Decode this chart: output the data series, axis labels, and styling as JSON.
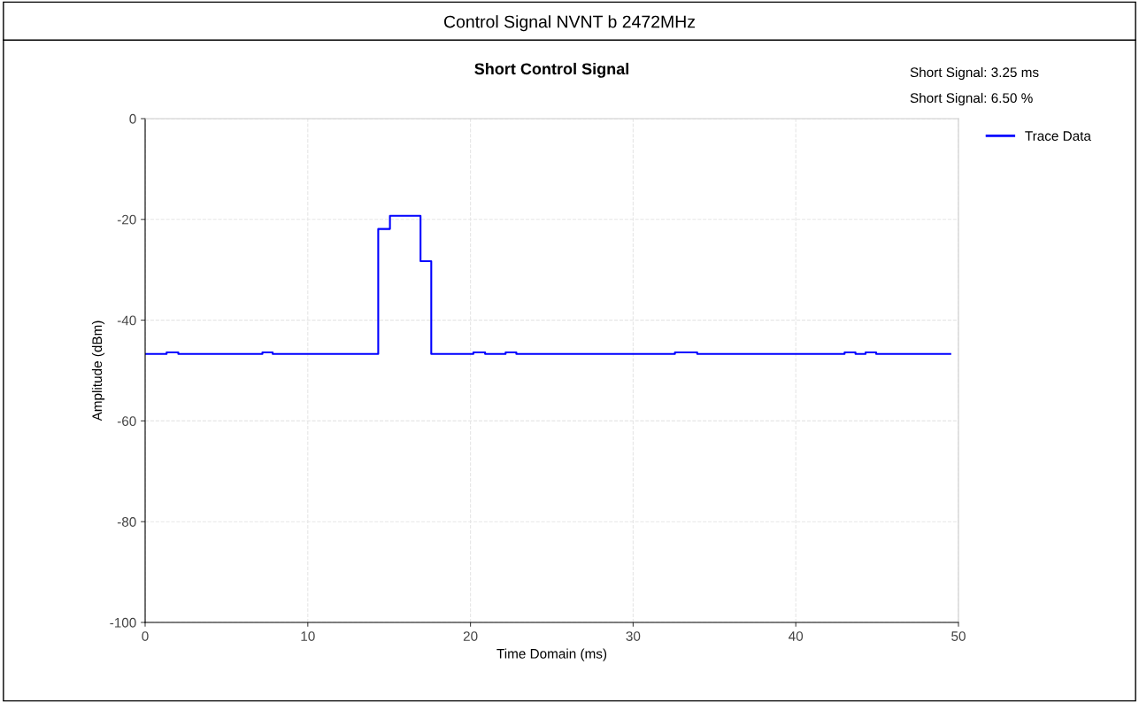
{
  "chart_data": {
    "type": "step",
    "title": "Control Signal NVNT b 2472MHz",
    "subtitle": "Short Control Signal",
    "xlabel": "Time Domain (ms)",
    "ylabel": "Amplitude (dBm)",
    "annotations": [
      "Short Signal: 3.25 ms",
      "Short Signal: 6.50 %"
    ],
    "series": [
      {
        "name": "Trace Data",
        "color": "#0000ff",
        "x": [
          0,
          1.32,
          2.04,
          7.21,
          7.84,
          14.33,
          15.05,
          16.93,
          17.59,
          20.18,
          20.9,
          22.16,
          22.82,
          32.57,
          33.94,
          43.0,
          43.67,
          44.29,
          44.94,
          49.5
        ],
        "values": [
          -46.7,
          -46.4,
          -46.7,
          -46.4,
          -46.7,
          -21.9,
          -19.3,
          -28.3,
          -46.7,
          -46.4,
          -46.7,
          -46.4,
          -46.7,
          -46.4,
          -46.7,
          -46.4,
          -46.7,
          -46.4,
          -46.7,
          -46.7
        ]
      }
    ],
    "xlim": [
      0,
      50
    ],
    "xticks": [
      0,
      10,
      20,
      30,
      40,
      50
    ],
    "ylim": [
      -100,
      0
    ],
    "yticks": [
      -100,
      -80,
      -60,
      -40,
      -20,
      0
    ],
    "grid": true,
    "legend": "top right",
    "marker": "none",
    "line_style": "solid"
  }
}
